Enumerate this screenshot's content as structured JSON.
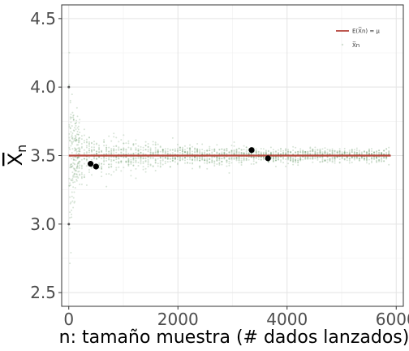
{
  "chart_data": {
    "type": "scatter",
    "title": "",
    "xlabel": "n: tamaño muestra (# dados lanzados)",
    "ylabel": "X̅n",
    "xlim": [
      -130,
      6130
    ],
    "ylim": [
      2.4,
      4.6
    ],
    "xticks": [
      0,
      2000,
      4000,
      6000
    ],
    "xtick_labels": [
      "0",
      "2000",
      "4000",
      "6000"
    ],
    "yticks": [
      2.5,
      3.0,
      3.5,
      4.0,
      4.5
    ],
    "ytick_labels": [
      "2.5",
      "3.0",
      "3.5",
      "4.0",
      "4.5"
    ],
    "grid": true,
    "legend_position": "top-right",
    "series": [
      {
        "name": "E(X̅n) = μ",
        "kind": "line",
        "color": "#b5443a",
        "x": [
          0,
          5900
        ],
        "y": [
          3.5,
          3.5
        ]
      },
      {
        "name": "X̅n",
        "kind": "cloud",
        "color": "#6f9f6f",
        "description_envelope": {
          "x_range": [
            1,
            5900
          ],
          "mean": 3.5,
          "sd_per_die": 1.7078
        }
      },
      {
        "name": "",
        "kind": "highlight",
        "color": "#000000",
        "x": [
          400,
          500,
          3350,
          3650
        ],
        "y": [
          3.44,
          3.42,
          3.54,
          3.48
        ]
      },
      {
        "name": "",
        "kind": "outlier",
        "color": "#555555",
        "x": [
          1,
          1
        ],
        "y": [
          4.0,
          3.0
        ]
      }
    ]
  }
}
